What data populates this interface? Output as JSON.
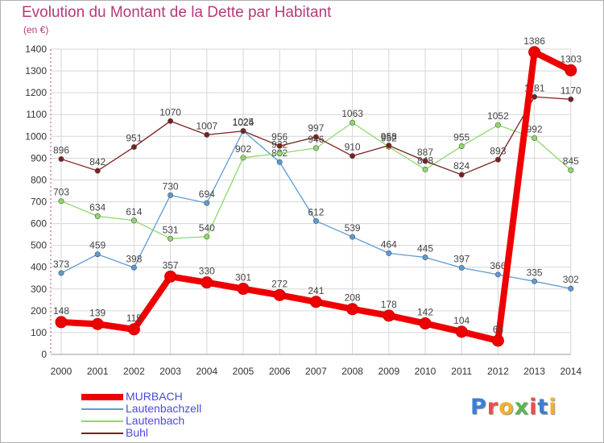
{
  "title": "Evolution du Montant de la Dette par Habitant",
  "unit": "(en €)",
  "logo": {
    "letters": [
      "P",
      "r",
      "o",
      "x",
      "i",
      "t",
      "i"
    ],
    "colors": [
      "#3a7fd5",
      "#e8504a",
      "#f2b12c",
      "#5ab552",
      "#e8504a",
      "#3a7fd5",
      "#f2b12c"
    ]
  },
  "chart_data": {
    "type": "line",
    "title": "Evolution du Montant de la Dette par Habitant",
    "ylabel": "(en €)",
    "xlabel": "",
    "ylim": [
      0,
      1400
    ],
    "yticks": [
      0,
      100,
      200,
      300,
      400,
      500,
      600,
      700,
      800,
      900,
      1000,
      1100,
      1200,
      1300,
      1400
    ],
    "grid": true,
    "legend_position": "bottom-left",
    "categories": [
      "2000",
      "2001",
      "2002",
      "2003",
      "2004",
      "2005",
      "2006",
      "2007",
      "2008",
      "2009",
      "2010",
      "2011",
      "2012",
      "2013",
      "2014"
    ],
    "series": [
      {
        "name": "MURBACH",
        "color": "#ee0000",
        "values": [
          148,
          139,
          115,
          357,
          330,
          301,
          272,
          241,
          208,
          178,
          142,
          104,
          63,
          1386,
          1303
        ]
      },
      {
        "name": "Lautenbachzell",
        "color": "#5b9bd5",
        "values": [
          373,
          459,
          398,
          730,
          694,
          1025,
          882,
          612,
          539,
          464,
          445,
          397,
          366,
          335,
          302
        ]
      },
      {
        "name": "Lautenbach",
        "color": "#8ed96a",
        "values": [
          703,
          634,
          614,
          531,
          540,
          902,
          922,
          946,
          1063,
          952,
          848,
          955,
          1052,
          992,
          845
        ]
      },
      {
        "name": "Buhl",
        "color": "#7a2020",
        "values": [
          896,
          842,
          951,
          1070,
          1007,
          1024,
          956,
          997,
          910,
          958,
          887,
          824,
          893,
          1181,
          1170
        ]
      }
    ]
  }
}
